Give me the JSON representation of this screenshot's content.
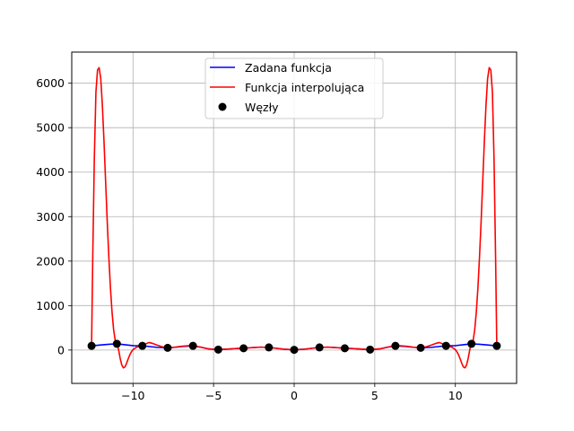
{
  "chart_data": {
    "type": "line",
    "title": "",
    "xlabel": "",
    "ylabel": "",
    "xlim": [
      -13.8,
      13.8
    ],
    "ylim": [
      -750,
      6700
    ],
    "grid": true,
    "legend_placement": "top-center",
    "x_ticks": [
      -10,
      -5,
      0,
      5,
      10
    ],
    "x_tick_labels": [
      "−10",
      "−5",
      "0",
      "5",
      "10"
    ],
    "y_ticks": [
      0,
      1000,
      2000,
      3000,
      4000,
      5000,
      6000
    ],
    "y_tick_labels": [
      "0",
      "1000",
      "2000",
      "3000",
      "4000",
      "5000",
      "6000"
    ],
    "legend": [
      {
        "label": "Zadana funkcja",
        "kind": "line",
        "color": "#0000ff"
      },
      {
        "label": "Funkcja interpolująca",
        "kind": "line",
        "color": "#ff0000"
      },
      {
        "label": "Węzły",
        "kind": "marker",
        "color": "#000000"
      }
    ],
    "series": [
      {
        "name": "Zadana funkcja",
        "color": "#0000ff",
        "x": [
          -12.57,
          -12.0,
          -11.5,
          -11.0,
          -10.5,
          -10.0,
          -9.42,
          -9.0,
          -8.5,
          -7.85,
          -7.3,
          -6.8,
          -6.28,
          -5.8,
          -5.3,
          -4.71,
          -4.2,
          -3.6,
          -3.14,
          -2.6,
          -2.1,
          -1.57,
          -1.0,
          -0.5,
          0.0,
          0.5,
          1.0,
          1.57,
          2.1,
          2.6,
          3.14,
          3.6,
          4.2,
          4.71,
          5.3,
          5.8,
          6.28,
          6.8,
          7.3,
          7.85,
          8.5,
          9.0,
          9.42,
          10.0,
          10.5,
          11.0,
          11.5,
          12.0,
          12.57
        ],
        "y": [
          95,
          115,
          130,
          140,
          120,
          100,
          95,
          80,
          60,
          50,
          65,
          85,
          95,
          65,
          25,
          10,
          20,
          35,
          40,
          55,
          65,
          60,
          35,
          15,
          5,
          15,
          35,
          60,
          65,
          55,
          40,
          35,
          20,
          10,
          25,
          65,
          95,
          85,
          65,
          50,
          60,
          80,
          95,
          100,
          120,
          140,
          130,
          115,
          95
        ]
      },
      {
        "name": "Funkcja interpolująca",
        "color": "#ff0000",
        "x": [
          -12.57,
          -12.5,
          -12.4,
          -12.3,
          -12.2,
          -12.1,
          -12.0,
          -11.9,
          -11.8,
          -11.7,
          -11.6,
          -11.5,
          -11.4,
          -11.3,
          -11.2,
          -11.1,
          -11.0,
          -10.9,
          -10.8,
          -10.7,
          -10.6,
          -10.5,
          -10.4,
          -10.3,
          -10.2,
          -10.1,
          -10.0,
          -9.8,
          -9.6,
          -9.42,
          -9.2,
          -9.0,
          -8.8,
          -8.5,
          -8.2,
          -7.85,
          -7.5,
          -7.0,
          -6.5,
          -6.28,
          -5.8,
          -5.3,
          -4.71,
          -4.2,
          -3.6,
          -3.14,
          -2.6,
          -2.1,
          -1.57,
          -1.0,
          -0.5,
          0.0,
          0.5,
          1.0,
          1.57,
          2.1,
          2.6,
          3.14,
          3.6,
          4.2,
          4.71,
          5.3,
          5.8,
          6.28,
          6.5,
          7.0,
          7.5,
          7.85,
          8.2,
          8.5,
          8.8,
          9.0,
          9.2,
          9.42,
          9.6,
          9.8,
          10.0,
          10.1,
          10.2,
          10.3,
          10.4,
          10.5,
          10.6,
          10.7,
          10.8,
          10.9,
          11.0,
          11.1,
          11.2,
          11.3,
          11.4,
          11.5,
          11.6,
          11.7,
          11.8,
          11.9,
          12.0,
          12.1,
          12.2,
          12.3,
          12.4,
          12.5,
          12.57
        ],
        "y": [
          95,
          2000,
          4300,
          5800,
          6300,
          6350,
          6100,
          5500,
          4700,
          3800,
          2900,
          2100,
          1400,
          850,
          450,
          210,
          140,
          20,
          -180,
          -330,
          -400,
          -380,
          -300,
          -200,
          -110,
          -40,
          10,
          60,
          90,
          95,
          140,
          170,
          150,
          110,
          75,
          50,
          60,
          85,
          100,
          95,
          65,
          25,
          10,
          20,
          35,
          40,
          55,
          65,
          60,
          35,
          15,
          5,
          15,
          35,
          60,
          65,
          55,
          40,
          35,
          20,
          10,
          25,
          65,
          95,
          100,
          85,
          60,
          50,
          75,
          110,
          150,
          170,
          140,
          95,
          90,
          60,
          10,
          -40,
          -110,
          -200,
          -300,
          -380,
          -400,
          -330,
          -180,
          20,
          140,
          210,
          450,
          850,
          1400,
          2100,
          2900,
          3800,
          4700,
          5500,
          6100,
          6350,
          6300,
          5800,
          4300,
          2000,
          95
        ]
      }
    ],
    "nodes": {
      "name": "Węzły",
      "color": "#000000",
      "x": [
        -12.57,
        -11.0,
        -9.42,
        -7.85,
        -6.28,
        -4.71,
        -3.14,
        -1.57,
        0.0,
        1.57,
        3.14,
        4.71,
        6.28,
        7.85,
        9.42,
        11.0,
        12.57
      ],
      "y": [
        95,
        140,
        95,
        50,
        95,
        10,
        40,
        60,
        5,
        60,
        40,
        10,
        95,
        50,
        95,
        140,
        95
      ]
    }
  }
}
